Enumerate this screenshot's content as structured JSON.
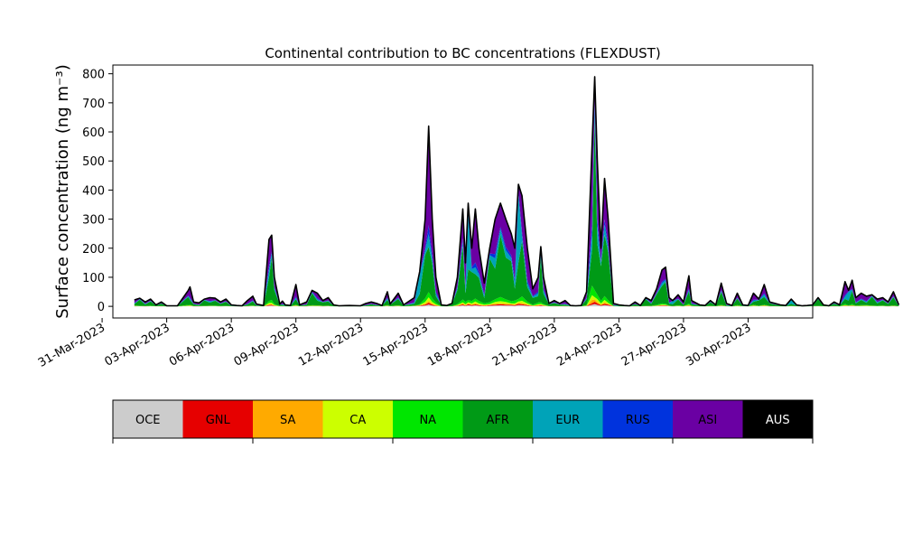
{
  "chart_data": {
    "type": "area",
    "stacked": true,
    "title": "Continental contribution to BC concentrations (FLEXDUST)",
    "ylabel": "Surface concentration (ng m⁻³)",
    "xlabel": "",
    "ylim": [
      -40,
      830
    ],
    "y_ticks": [
      0,
      100,
      200,
      300,
      400,
      500,
      600,
      700,
      800
    ],
    "x_range_days": [
      "2023-03-31 12:00",
      "2023-05-03"
    ],
    "x_ticks": [
      "31-Mar-2023",
      "03-Apr-2023",
      "06-Apr-2023",
      "09-Apr-2023",
      "12-Apr-2023",
      "15-Apr-2023",
      "18-Apr-2023",
      "21-Apr-2023",
      "24-Apr-2023",
      "27-Apr-2023",
      "30-Apr-2023"
    ],
    "grid": false,
    "legend_placement": "colorbar below plot",
    "series_order": [
      "OCE",
      "GNL",
      "SA",
      "CA",
      "NA",
      "AFR",
      "EUR",
      "RUS",
      "ASI",
      "AUS"
    ],
    "colors": {
      "OCE": "#cccccc",
      "GNL": "#e60000",
      "SA": "#ffaa00",
      "CA": "#ccff00",
      "NA": "#00e600",
      "AFR": "#009a16",
      "EUR": "#00a3b8",
      "RUS": "#0033dd",
      "ASI": "#6a00a3",
      "AUS": "#000000"
    },
    "total_profile": [
      [
        "2023-04-01 12:00",
        22
      ],
      [
        "2023-04-01 18:00",
        28
      ],
      [
        "2023-04-02",
        15
      ],
      [
        "2023-04-02 06:00",
        25
      ],
      [
        "2023-04-02 12:00",
        5
      ],
      [
        "2023-04-02 18:00",
        15
      ],
      [
        "2023-04-03",
        2
      ],
      [
        "2023-04-03 12:00",
        2
      ],
      [
        "2023-04-04",
        55
      ],
      [
        "2023-04-04 02:00",
        67
      ],
      [
        "2023-04-04 06:00",
        15
      ],
      [
        "2023-04-04 12:00",
        12
      ],
      [
        "2023-04-04 18:00",
        25
      ],
      [
        "2023-04-05",
        30
      ],
      [
        "2023-04-05 06:00",
        28
      ],
      [
        "2023-04-05 12:00",
        15
      ],
      [
        "2023-04-05 18:00",
        25
      ],
      [
        "2023-04-06",
        5
      ],
      [
        "2023-04-06 06:00",
        3
      ],
      [
        "2023-04-06 12:00",
        2
      ],
      [
        "2023-04-06 18:00",
        20
      ],
      [
        "2023-04-07",
        35
      ],
      [
        "2023-04-07 04:00",
        8
      ],
      [
        "2023-04-07 12:00",
        3
      ],
      [
        "2023-04-07 18:00",
        230
      ],
      [
        "2023-04-07 21:00",
        245
      ],
      [
        "2023-04-08",
        100
      ],
      [
        "2023-04-08 06:00",
        8
      ],
      [
        "2023-04-08 09:00",
        18
      ],
      [
        "2023-04-08 12:00",
        5
      ],
      [
        "2023-04-08 18:00",
        3
      ],
      [
        "2023-04-09",
        75
      ],
      [
        "2023-04-09 04:00",
        5
      ],
      [
        "2023-04-09 12:00",
        15
      ],
      [
        "2023-04-09 18:00",
        55
      ],
      [
        "2023-04-10",
        45
      ],
      [
        "2023-04-10 06:00",
        20
      ],
      [
        "2023-04-10 12:00",
        30
      ],
      [
        "2023-04-10 18:00",
        5
      ],
      [
        "2023-04-11",
        2
      ],
      [
        "2023-04-11 12:00",
        3
      ],
      [
        "2023-04-12",
        2
      ],
      [
        "2023-04-12 06:00",
        10
      ],
      [
        "2023-04-12 12:00",
        15
      ],
      [
        "2023-04-12 18:00",
        10
      ],
      [
        "2023-04-13",
        3
      ],
      [
        "2023-04-13 06:00",
        50
      ],
      [
        "2023-04-13 09:00",
        8
      ],
      [
        "2023-04-13 18:00",
        45
      ],
      [
        "2023-04-14",
        5
      ],
      [
        "2023-04-14 12:00",
        30
      ],
      [
        "2023-04-14 18:00",
        120
      ],
      [
        "2023-04-15",
        300
      ],
      [
        "2023-04-15 04:00",
        620
      ],
      [
        "2023-04-15 08:00",
        300
      ],
      [
        "2023-04-15 12:00",
        100
      ],
      [
        "2023-04-15 18:00",
        5
      ],
      [
        "2023-04-16",
        3
      ],
      [
        "2023-04-16 06:00",
        10
      ],
      [
        "2023-04-16 12:00",
        100
      ],
      [
        "2023-04-16 18:00",
        335
      ],
      [
        "2023-04-16 21:00",
        150
      ],
      [
        "2023-04-17",
        355
      ],
      [
        "2023-04-17 04:00",
        200
      ],
      [
        "2023-04-17 08:00",
        335
      ],
      [
        "2023-04-17 12:00",
        200
      ],
      [
        "2023-04-17 18:00",
        80
      ],
      [
        "2023-04-18",
        200
      ],
      [
        "2023-04-18 06:00",
        300
      ],
      [
        "2023-04-18 12:00",
        355
      ],
      [
        "2023-04-18 18:00",
        300
      ],
      [
        "2023-04-19",
        250
      ],
      [
        "2023-04-19 04:00",
        200
      ],
      [
        "2023-04-19 08:00",
        420
      ],
      [
        "2023-04-19 12:00",
        380
      ],
      [
        "2023-04-19 18:00",
        200
      ],
      [
        "2023-04-20",
        60
      ],
      [
        "2023-04-20 06:00",
        100
      ],
      [
        "2023-04-20 09:00",
        205
      ],
      [
        "2023-04-20 12:00",
        100
      ],
      [
        "2023-04-20 18:00",
        10
      ],
      [
        "2023-04-21",
        20
      ],
      [
        "2023-04-21 06:00",
        10
      ],
      [
        "2023-04-21 12:00",
        20
      ],
      [
        "2023-04-21 18:00",
        3
      ],
      [
        "2023-04-22",
        2
      ],
      [
        "2023-04-22 06:00",
        3
      ],
      [
        "2023-04-22 12:00",
        50
      ],
      [
        "2023-04-22 18:00",
        550
      ],
      [
        "2023-04-22 21:00",
        790
      ],
      [
        "2023-04-23",
        500
      ],
      [
        "2023-04-23 04:00",
        200
      ],
      [
        "2023-04-23 08:00",
        440
      ],
      [
        "2023-04-23 12:00",
        300
      ],
      [
        "2023-04-23 18:00",
        10
      ],
      [
        "2023-04-24",
        5
      ],
      [
        "2023-04-24 06:00",
        3
      ],
      [
        "2023-04-24 12:00",
        2
      ],
      [
        "2023-04-24 18:00",
        15
      ],
      [
        "2023-04-25",
        3
      ],
      [
        "2023-04-25 06:00",
        30
      ],
      [
        "2023-04-25 12:00",
        20
      ],
      [
        "2023-04-25 18:00",
        60
      ],
      [
        "2023-04-26",
        125
      ],
      [
        "2023-04-26 04:00",
        135
      ],
      [
        "2023-04-26 08:00",
        30
      ],
      [
        "2023-04-26 12:00",
        20
      ],
      [
        "2023-04-26 18:00",
        40
      ],
      [
        "2023-04-27",
        15
      ],
      [
        "2023-04-27 06:00",
        105
      ],
      [
        "2023-04-27 09:00",
        20
      ],
      [
        "2023-04-27 18:00",
        5
      ],
      [
        "2023-04-28",
        3
      ],
      [
        "2023-04-28 06:00",
        20
      ],
      [
        "2023-04-28 12:00",
        5
      ],
      [
        "2023-04-28 18:00",
        80
      ],
      [
        "2023-04-29",
        10
      ],
      [
        "2023-04-29 06:00",
        3
      ],
      [
        "2023-04-29 12:00",
        45
      ],
      [
        "2023-04-29 18:00",
        5
      ],
      [
        "2023-04-30",
        3
      ],
      [
        "2023-04-30 06:00",
        45
      ],
      [
        "2023-04-30 12:00",
        25
      ],
      [
        "2023-04-30 18:00",
        75
      ],
      [
        "2023-05-01",
        15
      ],
      [
        "2023-05-01 06:00",
        10
      ],
      [
        "2023-05-01 12:00",
        5
      ],
      [
        "2023-05-01 18:00",
        3
      ],
      [
        "2023-05-02",
        25
      ],
      [
        "2023-05-02 06:00",
        5
      ],
      [
        "2023-05-02 12:00",
        2
      ],
      [
        "2023-05-02 18:00",
        3
      ],
      [
        "2023-05-03",
        5
      ],
      [
        "2023-05-03 06:00",
        30
      ],
      [
        "2023-05-03 12:00",
        5
      ],
      [
        "2023-05-03 18:00",
        2
      ],
      [
        "2023-05-04",
        15
      ],
      [
        "2023-05-04 06:00",
        5
      ],
      [
        "2023-05-04 12:00",
        85
      ],
      [
        "2023-05-04 16:00",
        55
      ],
      [
        "2023-05-04 20:00",
        90
      ],
      [
        "2023-05-05",
        30
      ],
      [
        "2023-05-05 06:00",
        45
      ],
      [
        "2023-05-05 12:00",
        35
      ],
      [
        "2023-05-05 18:00",
        40
      ],
      [
        "2023-05-06",
        25
      ],
      [
        "2023-05-06 06:00",
        30
      ],
      [
        "2023-05-06 12:00",
        15
      ],
      [
        "2023-05-06 18:00",
        50
      ],
      [
        "2023-05-07",
        5
      ]
    ]
  }
}
